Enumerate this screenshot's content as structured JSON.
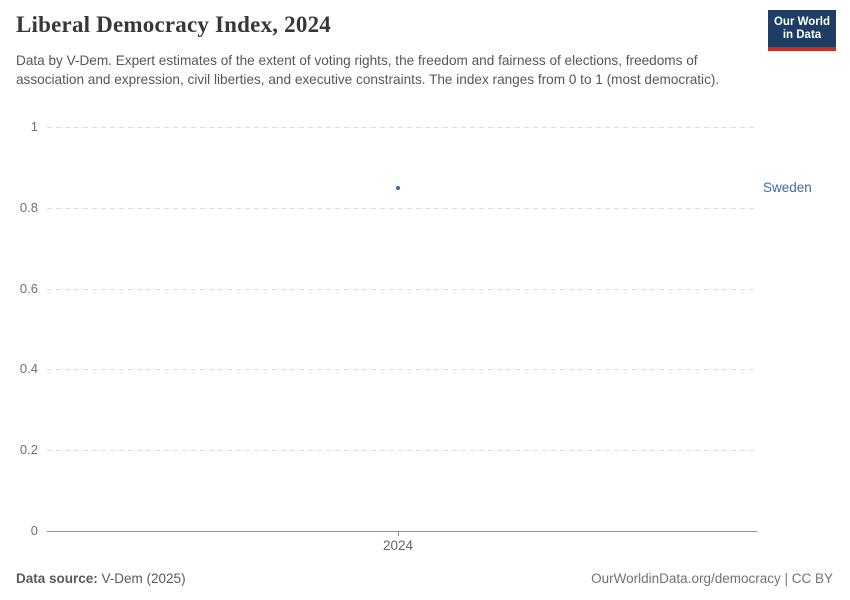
{
  "header": {
    "title": "Liberal Democracy Index, 2024",
    "subtitle": "Data by V-Dem. Expert estimates of the extent of voting rights, the freedom and fairness of elections, freedoms of association and expression, civil liberties, and executive constraints. The index ranges from 0 to 1 (most democratic).",
    "logo": {
      "line1": "Our World",
      "line2": "in Data",
      "bg_color": "#1d3d63",
      "accent_color": "#cf2d24"
    }
  },
  "chart_data": {
    "type": "scatter",
    "title": "Liberal Democracy Index, 2024",
    "x": [
      2024
    ],
    "x_tick_labels": [
      "2024"
    ],
    "series": [
      {
        "name": "Sweden",
        "values": [
          0.85
        ],
        "color": "#3e6ba6"
      }
    ],
    "ylim": [
      0,
      1
    ],
    "y_ticks": [
      0,
      0.2,
      0.4,
      0.6,
      0.8,
      1
    ],
    "y_tick_labels": [
      "0",
      "0.2",
      "0.4",
      "0.6",
      "0.8",
      "1"
    ],
    "grid": "horizontal-dashed",
    "legend_position": "right-of-point"
  },
  "footer": {
    "source_label": "Data source:",
    "source_value": " V-Dem (2025)",
    "attribution": "OurWorldinData.org/democracy | CC BY"
  }
}
